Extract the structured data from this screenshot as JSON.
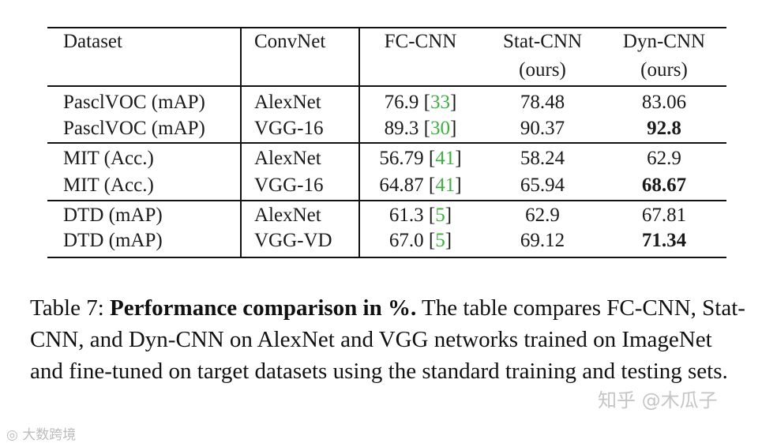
{
  "table": {
    "header": {
      "dataset": "Dataset",
      "convnet": "ConvNet",
      "fc": "FC-CNN",
      "stat": "Stat-CNN",
      "stat_sub": "(ours)",
      "dyn": "Dyn-CNN",
      "dyn_sub": "(ours)"
    },
    "rows": [
      {
        "dataset": "PasclVOC (mAP)",
        "convnet": "AlexNet",
        "fc": "76.9",
        "fc_ref": "33",
        "stat": "78.48",
        "dyn": "83.06"
      },
      {
        "dataset": "PasclVOC (mAP)",
        "convnet": "VGG-16",
        "fc": "89.3",
        "fc_ref": "30",
        "stat": "90.37",
        "dyn": "92.8"
      },
      {
        "dataset": "MIT (Acc.)",
        "convnet": "AlexNet",
        "fc": "56.79",
        "fc_ref": "41",
        "stat": "58.24",
        "dyn": "62.9"
      },
      {
        "dataset": "MIT (Acc.)",
        "convnet": "VGG-16",
        "fc": "64.87",
        "fc_ref": "41",
        "stat": "65.94",
        "dyn": "68.67"
      },
      {
        "dataset": "DTD (mAP)",
        "convnet": "AlexNet",
        "fc": "61.3",
        "fc_ref": "5",
        "stat": "62.9",
        "dyn": "67.81"
      },
      {
        "dataset": "DTD (mAP)",
        "convnet": "VGG-VD",
        "fc": "67.0",
        "fc_ref": "5",
        "stat": "69.12",
        "dyn": "71.34"
      }
    ]
  },
  "caption": {
    "label": "Table 7:",
    "lead": "Performance comparison in %.",
    "text": "The table compares FC-CNN, Stat-CNN, and Dyn-CNN on AlexNet and VGG networks trained on ImageNet and fine-tuned on target datasets using the standard training and testing sets."
  },
  "watermarks": {
    "zhihu": "知乎 @木瓜子",
    "logo": "大数跨境"
  }
}
